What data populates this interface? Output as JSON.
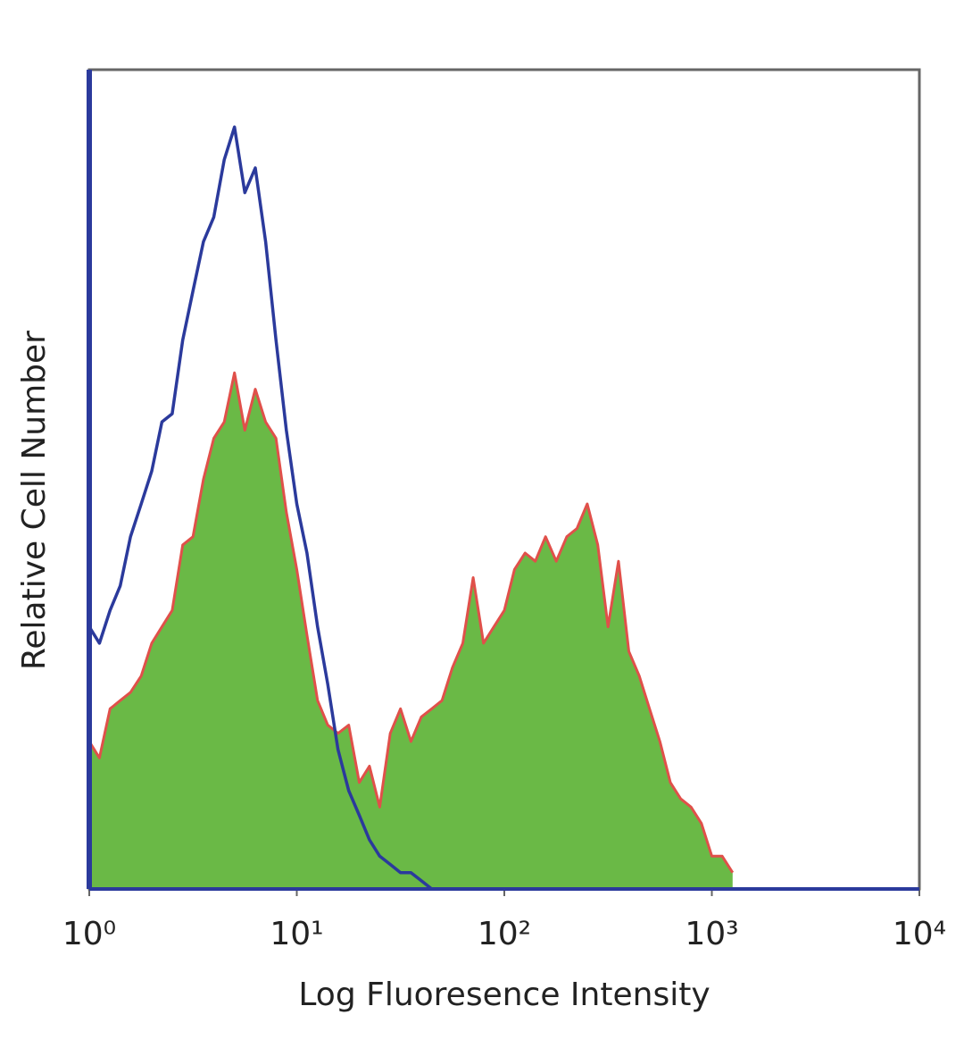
{
  "chart_data": {
    "type": "histogram-overlay",
    "x_label": "Log Fluoresence Intensity",
    "y_label": "Relative Cell Number",
    "log_x": true,
    "xlim": [
      1,
      10000
    ],
    "ylim": [
      0,
      100
    ],
    "xticks": [
      {
        "value": 1,
        "label": "10⁰"
      },
      {
        "value": 10,
        "label": "10¹"
      },
      {
        "value": 100,
        "label": "10²"
      },
      {
        "value": 1000,
        "label": "10³"
      },
      {
        "value": 10000,
        "label": "10⁴"
      }
    ],
    "x": [
      1,
      1.12,
      1.26,
      1.41,
      1.58,
      1.78,
      2,
      2.24,
      2.51,
      2.82,
      3.16,
      3.55,
      3.98,
      4.47,
      5.01,
      5.62,
      6.31,
      7.08,
      7.94,
      8.91,
      10,
      11.2,
      12.6,
      14.1,
      15.8,
      17.8,
      20,
      22.4,
      25.1,
      28.2,
      31.6,
      35.5,
      39.8,
      44.7,
      50.1,
      56.2,
      63.1,
      70.8,
      79.4,
      89.1,
      100,
      112,
      126,
      141,
      158,
      178,
      200,
      224,
      251,
      282,
      316,
      355,
      398,
      447,
      501,
      562,
      631,
      708,
      794,
      891,
      1000,
      1122,
      1259
    ],
    "series": [
      {
        "style": "filled",
        "color": "#6ab946",
        "edge_color": "#e0504a",
        "values": [
          18,
          16,
          22,
          23,
          24,
          26,
          30,
          32,
          34,
          42,
          43,
          50,
          55,
          57,
          63,
          56,
          61,
          57,
          55,
          46,
          39,
          31,
          23,
          20,
          19,
          20,
          13,
          15,
          10,
          19,
          22,
          18,
          21,
          22,
          23,
          27,
          30,
          38,
          30,
          32,
          34,
          39,
          41,
          40,
          43,
          40,
          43,
          44,
          47,
          42,
          32,
          40,
          29,
          26,
          22,
          18,
          13,
          11,
          10,
          8,
          4,
          4,
          2
        ]
      },
      {
        "style": "line",
        "color": "#2b3a9c",
        "values": [
          32,
          30,
          34,
          37,
          43,
          47,
          51,
          57,
          58,
          67,
          73,
          79,
          82,
          89,
          93,
          85,
          88,
          79,
          67,
          56,
          47,
          41,
          32,
          25,
          17,
          12,
          9,
          6,
          4,
          3,
          2,
          2,
          1,
          0,
          0,
          0,
          0,
          0,
          0,
          0,
          0,
          0,
          0,
          0,
          0,
          0,
          0,
          0,
          0,
          0,
          0,
          0,
          0,
          0,
          0,
          0,
          0,
          0,
          0,
          0,
          0,
          0,
          0
        ]
      }
    ]
  }
}
